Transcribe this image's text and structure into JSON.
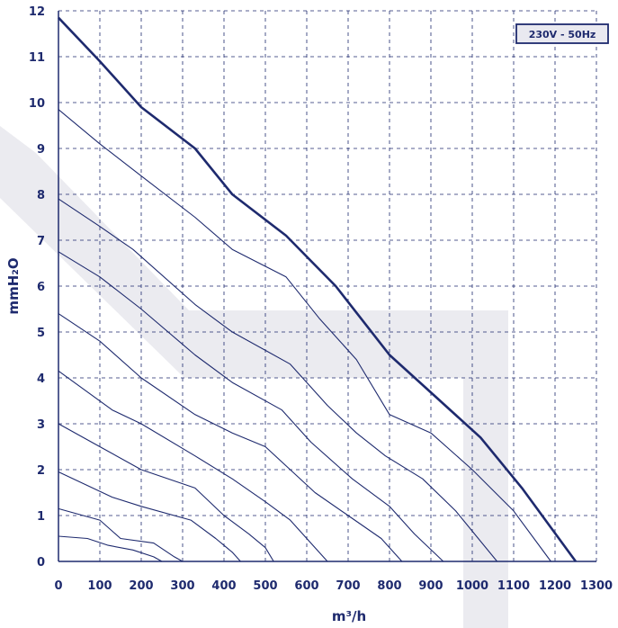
{
  "chart_data": {
    "type": "line",
    "xlabel": "m³/h",
    "ylabel": "mmH₂O",
    "badge": "230V - 50Hz",
    "xlim": [
      0,
      1300
    ],
    "ylim": [
      0,
      12
    ],
    "x_ticks": [
      "0",
      "100",
      "200",
      "300",
      "400",
      "500",
      "600",
      "700",
      "800",
      "900",
      "1000",
      "1100",
      "1200",
      "1300"
    ],
    "y_ticks": [
      "0",
      "1",
      "2",
      "3",
      "4",
      "5",
      "6",
      "7",
      "8",
      "9",
      "10",
      "11",
      "12"
    ],
    "grid": true,
    "colors": {
      "line": "#1e2a6e",
      "badge_bg": "#e9e9f0",
      "watermark": "#ebebf0"
    },
    "series": [
      {
        "values": [
          [
            0,
            11.85
          ],
          [
            100,
            10.9
          ],
          [
            200,
            9.9
          ],
          [
            330,
            9.0
          ],
          [
            420,
            8.0
          ],
          [
            550,
            7.1
          ],
          [
            670,
            6.0
          ],
          [
            800,
            4.5
          ],
          [
            910,
            3.6
          ],
          [
            1020,
            2.7
          ],
          [
            1120,
            1.6
          ],
          [
            1250,
            0
          ]
        ],
        "bold": true
      },
      {
        "values": [
          [
            0,
            9.85
          ],
          [
            100,
            9.1
          ],
          [
            200,
            8.4
          ],
          [
            330,
            7.5
          ],
          [
            420,
            6.8
          ],
          [
            550,
            6.2
          ],
          [
            630,
            5.3
          ],
          [
            720,
            4.4
          ],
          [
            800,
            3.2
          ],
          [
            900,
            2.8
          ],
          [
            1000,
            2.0
          ],
          [
            1100,
            1.1
          ],
          [
            1190,
            0
          ]
        ]
      },
      {
        "values": [
          [
            0,
            7.9
          ],
          [
            100,
            7.3
          ],
          [
            180,
            6.8
          ],
          [
            330,
            5.6
          ],
          [
            420,
            5.0
          ],
          [
            500,
            4.6
          ],
          [
            560,
            4.3
          ],
          [
            650,
            3.4
          ],
          [
            720,
            2.8
          ],
          [
            790,
            2.3
          ],
          [
            880,
            1.8
          ],
          [
            960,
            1.1
          ],
          [
            1060,
            0
          ]
        ]
      },
      {
        "values": [
          [
            0,
            6.75
          ],
          [
            100,
            6.2
          ],
          [
            200,
            5.5
          ],
          [
            330,
            4.5
          ],
          [
            420,
            3.9
          ],
          [
            540,
            3.3
          ],
          [
            610,
            2.6
          ],
          [
            710,
            1.8
          ],
          [
            800,
            1.2
          ],
          [
            860,
            0.6
          ],
          [
            930,
            0
          ]
        ]
      },
      {
        "values": [
          [
            0,
            5.4
          ],
          [
            100,
            4.8
          ],
          [
            200,
            4.0
          ],
          [
            330,
            3.2
          ],
          [
            420,
            2.8
          ],
          [
            500,
            2.5
          ],
          [
            560,
            2.0
          ],
          [
            620,
            1.5
          ],
          [
            700,
            1.0
          ],
          [
            780,
            0.5
          ],
          [
            830,
            0
          ]
        ]
      },
      {
        "values": [
          [
            0,
            4.15
          ],
          [
            130,
            3.3
          ],
          [
            200,
            3.0
          ],
          [
            330,
            2.3
          ],
          [
            420,
            1.8
          ],
          [
            500,
            1.3
          ],
          [
            560,
            0.9
          ],
          [
            610,
            0.4
          ],
          [
            650,
            0
          ]
        ]
      },
      {
        "values": [
          [
            0,
            3.0
          ],
          [
            100,
            2.5
          ],
          [
            200,
            2.0
          ],
          [
            330,
            1.6
          ],
          [
            400,
            1.0
          ],
          [
            460,
            0.6
          ],
          [
            500,
            0.3
          ],
          [
            520,
            0
          ]
        ]
      },
      {
        "values": [
          [
            0,
            1.95
          ],
          [
            130,
            1.4
          ],
          [
            200,
            1.2
          ],
          [
            320,
            0.9
          ],
          [
            380,
            0.5
          ],
          [
            420,
            0.2
          ],
          [
            440,
            0
          ]
        ]
      },
      {
        "values": [
          [
            0,
            1.15
          ],
          [
            100,
            0.9
          ],
          [
            150,
            0.5
          ],
          [
            230,
            0.4
          ],
          [
            280,
            0.1
          ],
          [
            300,
            0
          ]
        ]
      },
      {
        "values": [
          [
            0,
            0.55
          ],
          [
            70,
            0.5
          ],
          [
            120,
            0.35
          ],
          [
            180,
            0.25
          ],
          [
            230,
            0.1
          ],
          [
            250,
            0
          ]
        ]
      }
    ]
  }
}
